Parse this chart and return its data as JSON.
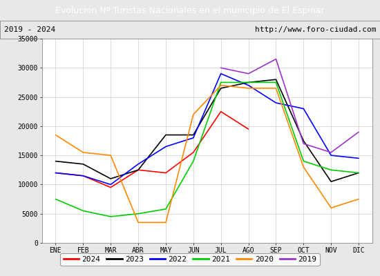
{
  "title": "Evolucion Nº Turistas Nacionales en el municipio de El Espinar",
  "subtitle_left": "2019 - 2024",
  "subtitle_right": "http://www.foro-ciudad.com",
  "title_bg": "#4472c4",
  "title_color": "white",
  "months": [
    "ENE",
    "FEB",
    "MAR",
    "ABR",
    "MAY",
    "JUN",
    "JUL",
    "AGO",
    "SEP",
    "OCT",
    "NOV",
    "DIC"
  ],
  "ylim": [
    0,
    35000
  ],
  "yticks": [
    0,
    5000,
    10000,
    15000,
    20000,
    25000,
    30000,
    35000
  ],
  "series": {
    "2024": {
      "color": "#ff0000",
      "data": [
        12000,
        11500,
        9500,
        12500,
        12000,
        15500,
        22500,
        19500,
        null,
        null,
        null,
        null
      ]
    },
    "2023": {
      "color": "#000000",
      "data": [
        14000,
        13500,
        11000,
        12500,
        18500,
        18500,
        26500,
        27500,
        28000,
        17500,
        10500,
        12000
      ]
    },
    "2022": {
      "color": "#0000ff",
      "data": [
        12000,
        11500,
        10000,
        13500,
        16500,
        18000,
        29000,
        27000,
        24000,
        23000,
        15000,
        14500
      ]
    },
    "2021": {
      "color": "#00cc00",
      "data": [
        7500,
        5500,
        4500,
        5000,
        5800,
        14000,
        27500,
        27500,
        27500,
        14000,
        12500,
        12000
      ]
    },
    "2020": {
      "color": "#ff8800",
      "data": [
        18500,
        15500,
        15000,
        3500,
        3500,
        22000,
        27000,
        26500,
        26500,
        13000,
        6000,
        7500
      ]
    },
    "2019": {
      "color": "#9933cc",
      "data": [
        null,
        null,
        null,
        null,
        null,
        null,
        30000,
        29000,
        31500,
        17000,
        15500,
        19000
      ]
    }
  },
  "legend_order": [
    "2024",
    "2023",
    "2022",
    "2021",
    "2020",
    "2019"
  ],
  "background_color": "#e8e8e8",
  "plot_bg": "#e8e8e8",
  "inner_bg": "#ffffff",
  "grid_color": "#cccccc",
  "title_fontsize": 9,
  "subtitle_fontsize": 8,
  "tick_fontsize": 7,
  "legend_fontsize": 8
}
